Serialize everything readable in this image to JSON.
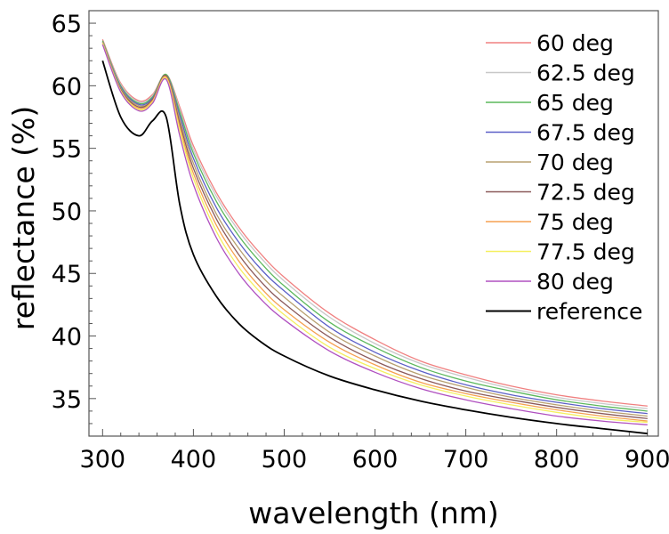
{
  "chart_data": {
    "type": "line",
    "title": "",
    "xlabel": "wavelength (nm)",
    "ylabel": "reflectance (%)",
    "xlim": [
      285,
      912
    ],
    "ylim": [
      32,
      66
    ],
    "xticks": [
      300,
      400,
      500,
      600,
      700,
      800,
      900
    ],
    "yticks": [
      35,
      40,
      45,
      50,
      55,
      60,
      65
    ],
    "grid": false,
    "legend_position": "top-right",
    "x": [
      300,
      320,
      340,
      355,
      370,
      385,
      400,
      425,
      450,
      475,
      500,
      550,
      600,
      650,
      700,
      750,
      800,
      850,
      900
    ],
    "series": [
      {
        "name": "60 deg",
        "color": "#f08080",
        "values": [
          63.7,
          60.2,
          58.8,
          59.3,
          60.9,
          58.3,
          55.2,
          51.5,
          48.7,
          46.5,
          44.7,
          41.8,
          39.7,
          38.0,
          36.9,
          36.0,
          35.3,
          34.8,
          34.4
        ]
      },
      {
        "name": "62.5 deg",
        "color": "#c8c8c8",
        "values": [
          63.6,
          60.1,
          58.7,
          59.2,
          60.9,
          58.1,
          54.9,
          51.2,
          48.4,
          46.2,
          44.4,
          41.5,
          39.4,
          37.8,
          36.7,
          35.8,
          35.1,
          34.6,
          34.2
        ]
      },
      {
        "name": "65 deg",
        "color": "#5cb85c",
        "values": [
          63.6,
          60.0,
          58.6,
          59.1,
          60.9,
          57.9,
          54.6,
          50.8,
          48.0,
          45.8,
          44.0,
          41.1,
          39.1,
          37.5,
          36.4,
          35.6,
          34.9,
          34.4,
          34.0
        ]
      },
      {
        "name": "67.5 deg",
        "color": "#5b5fc7",
        "values": [
          63.5,
          59.9,
          58.5,
          59.0,
          60.8,
          57.6,
          54.2,
          50.3,
          47.5,
          45.3,
          43.6,
          40.7,
          38.7,
          37.2,
          36.1,
          35.3,
          34.7,
          34.2,
          33.8
        ]
      },
      {
        "name": "70 deg",
        "color": "#b8a070",
        "values": [
          63.5,
          59.8,
          58.4,
          58.9,
          60.8,
          57.3,
          53.8,
          49.8,
          47.0,
          44.8,
          43.1,
          40.3,
          38.4,
          36.9,
          35.9,
          35.1,
          34.5,
          34.0,
          33.6
        ]
      },
      {
        "name": "72.5 deg",
        "color": "#8b5a5a",
        "values": [
          63.4,
          59.7,
          58.3,
          58.9,
          60.8,
          57.0,
          53.4,
          49.4,
          46.5,
          44.3,
          42.6,
          39.9,
          38.0,
          36.6,
          35.6,
          34.9,
          34.3,
          33.8,
          33.4
        ]
      },
      {
        "name": "75 deg",
        "color": "#f5a050",
        "values": [
          63.4,
          59.6,
          58.2,
          58.8,
          60.7,
          56.7,
          53.0,
          48.9,
          46.0,
          43.8,
          42.1,
          39.5,
          37.7,
          36.3,
          35.4,
          34.7,
          34.1,
          33.6,
          33.2
        ]
      },
      {
        "name": "77.5 deg",
        "color": "#f5f060",
        "values": [
          63.4,
          59.6,
          58.1,
          58.7,
          60.6,
          56.4,
          52.6,
          48.4,
          45.5,
          43.4,
          41.7,
          39.1,
          37.4,
          36.1,
          35.2,
          34.5,
          33.9,
          33.4,
          33.1
        ]
      },
      {
        "name": "80 deg",
        "color": "#b050c0",
        "values": [
          63.3,
          59.5,
          58.0,
          58.6,
          60.5,
          56.0,
          52.1,
          47.9,
          45.0,
          42.9,
          41.3,
          38.8,
          37.1,
          35.8,
          34.9,
          34.2,
          33.6,
          33.2,
          32.9
        ]
      },
      {
        "name": "reference",
        "color": "#000000",
        "values": [
          62.0,
          57.5,
          56.0,
          57.2,
          57.5,
          50.5,
          46.5,
          43.2,
          41.0,
          39.5,
          38.4,
          36.8,
          35.7,
          34.8,
          34.1,
          33.5,
          33.0,
          32.6,
          32.2
        ]
      }
    ]
  }
}
